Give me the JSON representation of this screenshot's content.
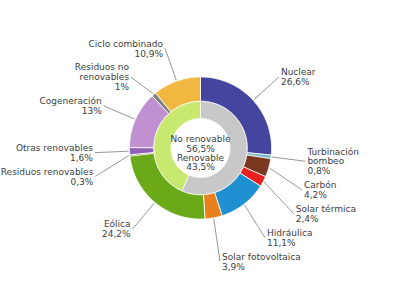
{
  "chart_data": {
    "type": "pie",
    "data_labels": true,
    "series": [
      {
        "categories": [
          "No renovable",
          "Renovable"
        ],
        "values": [
          56.5,
          43.5
        ],
        "value_labels": [
          "56,5%",
          "43,5%"
        ],
        "colors": [
          "#c8c8c8",
          "#c8e870"
        ]
      },
      {
        "categories": [
          "Nuclear",
          "Turbinación\nbombeo",
          "Carbón",
          "Solar térmica",
          "Hidráulica",
          "Solar fotovoltaica",
          "Eólica",
          "Residuos renovables",
          "Otras renovables",
          "Cogeneración",
          "Residuos no\nrenovables",
          "Ciclo combinado"
        ],
        "values": [
          26.6,
          0.8,
          4.2,
          2.4,
          11.1,
          3.9,
          24.2,
          0.3,
          1.6,
          13.0,
          1.0,
          10.9
        ],
        "value_labels": [
          "26,6%",
          "0,8%",
          "4,2%",
          "2,4%",
          "11,1%",
          "3,9%",
          "24,2%",
          "0,3%",
          "1,6%",
          "13%",
          "1%",
          "10,9%"
        ],
        "colors": [
          "#4545a0",
          "#70b8c8",
          "#7b3820",
          "#e82020",
          "#2090d0",
          "#e88020",
          "#6aaa18",
          "#604010",
          "#9060b8",
          "#c090d0",
          "#808080",
          "#f0b840"
        ]
      }
    ]
  }
}
